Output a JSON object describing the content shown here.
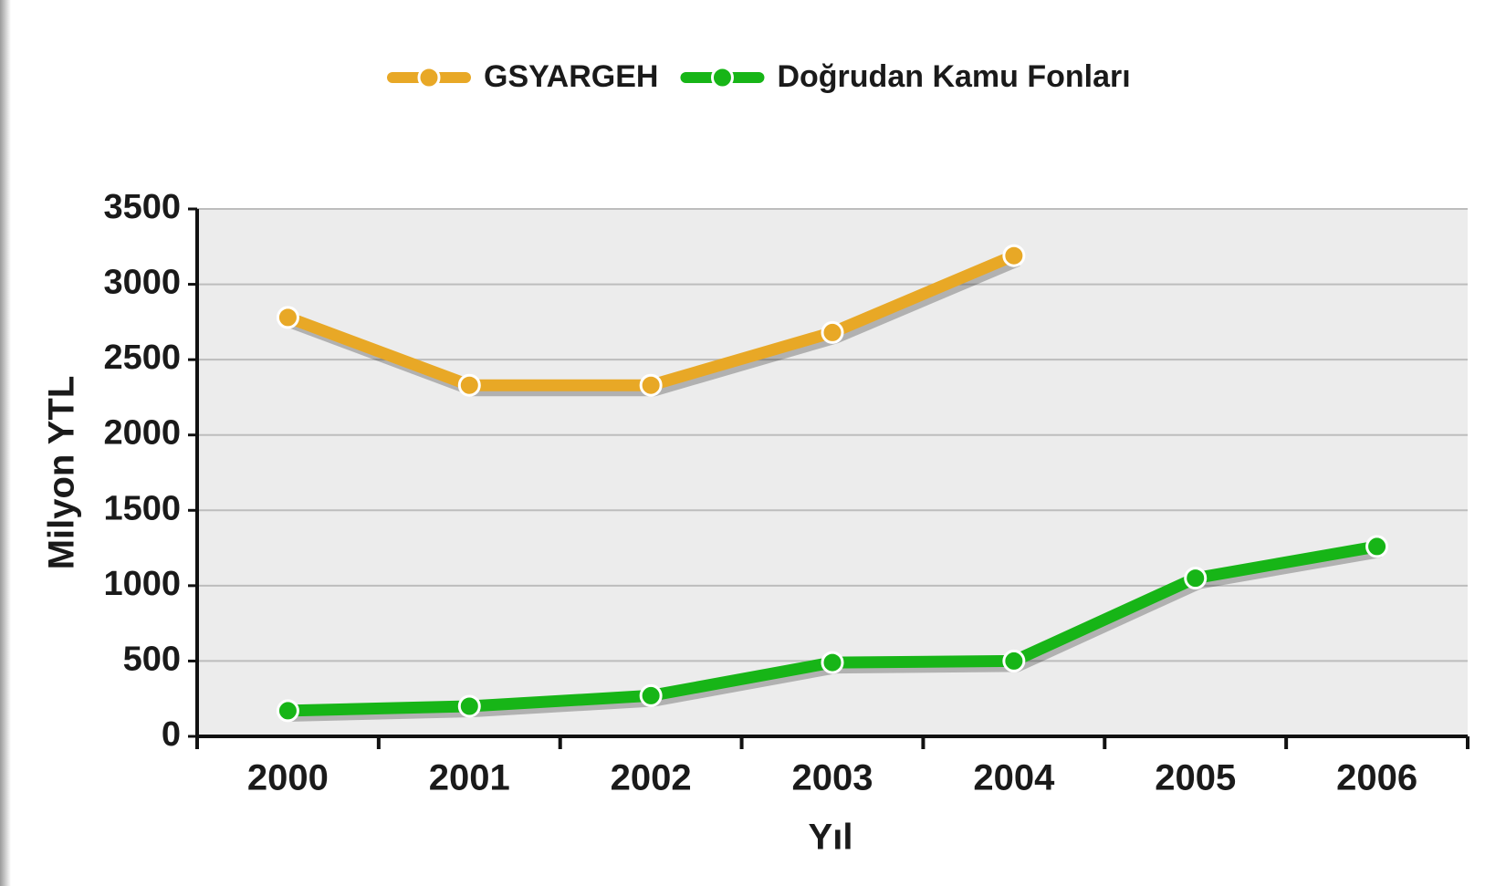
{
  "chart_data": {
    "type": "line",
    "categories": [
      "2000",
      "2001",
      "2002",
      "2003",
      "2004",
      "2005",
      "2006"
    ],
    "series": [
      {
        "name": "GSYARGEH",
        "color": "#e8a826",
        "values": [
          2780,
          2330,
          2330,
          2680,
          3190,
          null,
          null
        ]
      },
      {
        "name": "Doğrudan Kamu Fonları",
        "color": "#17b517",
        "values": [
          170,
          200,
          270,
          490,
          500,
          1050,
          1260
        ]
      }
    ],
    "x_label": "Yıl",
    "y_label": "Milyon YTL",
    "ylim": [
      0,
      3500
    ],
    "yticks": [
      0,
      500,
      1000,
      1500,
      2000,
      2500,
      3000,
      3500
    ],
    "grid": true,
    "legend": "top"
  }
}
